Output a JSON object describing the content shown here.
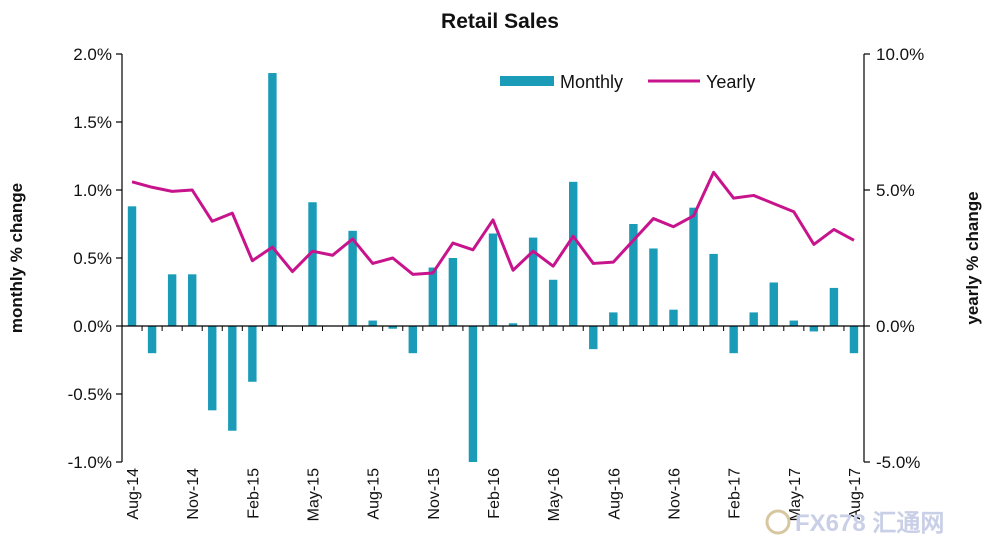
{
  "chart_data": {
    "type": "bar+line",
    "title": "Retail Sales",
    "categories": [
      "Aug-14",
      "Sep-14",
      "Oct-14",
      "Nov-14",
      "Dec-14",
      "Jan-15",
      "Feb-15",
      "Mar-15",
      "Apr-15",
      "May-15",
      "Jun-15",
      "Jul-15",
      "Aug-15",
      "Sep-15",
      "Oct-15",
      "Nov-15",
      "Dec-15",
      "Jan-16",
      "Feb-16",
      "Mar-16",
      "Apr-16",
      "May-16",
      "Jun-16",
      "Jul-16",
      "Aug-16",
      "Sep-16",
      "Oct-16",
      "Nov-16",
      "Dec-16",
      "Jan-17",
      "Feb-17",
      "Mar-17",
      "Apr-17",
      "May-17",
      "Jun-17",
      "Jul-17",
      "Aug-17"
    ],
    "x_tick_labels": [
      "Aug-14",
      "Nov-14",
      "Feb-15",
      "May-15",
      "Aug-15",
      "Nov-15",
      "Feb-16",
      "May-16",
      "Aug-16",
      "Nov-16",
      "Feb-17",
      "May-17",
      "Aug-17"
    ],
    "series": [
      {
        "name": "Monthly",
        "type": "bar",
        "axis": "left",
        "color": "#1a9cb8",
        "values": [
          0.88,
          -0.2,
          0.38,
          0.38,
          -0.62,
          -0.77,
          -0.41,
          1.86,
          0.0,
          0.91,
          0.0,
          0.7,
          0.04,
          -0.02,
          -0.2,
          0.43,
          0.5,
          -1.0,
          0.68,
          0.02,
          0.65,
          0.34,
          1.06,
          -0.17,
          0.1,
          0.75,
          0.57,
          0.12,
          0.87,
          0.53,
          -0.2,
          0.1,
          0.32,
          0.04,
          -0.04,
          0.28,
          -0.2
        ]
      },
      {
        "name": "Yearly",
        "type": "line",
        "axis": "right",
        "color": "#c8148c",
        "values": [
          5.3,
          5.1,
          4.95,
          5.0,
          3.85,
          4.15,
          2.4,
          2.9,
          2.0,
          2.75,
          2.6,
          3.2,
          2.3,
          2.5,
          1.9,
          1.95,
          3.05,
          2.8,
          3.9,
          2.05,
          2.75,
          2.2,
          3.3,
          2.3,
          2.35,
          3.15,
          3.95,
          3.65,
          4.05,
          5.65,
          4.7,
          4.8,
          4.5,
          4.2,
          3.0,
          3.55,
          3.15
        ]
      }
    ],
    "y_left": {
      "label": "monthly % change",
      "min": -1.0,
      "max": 2.0,
      "ticks": [
        "-1.0%",
        "-0.5%",
        "0.0%",
        "0.5%",
        "1.0%",
        "1.5%",
        "2.0%"
      ]
    },
    "y_right": {
      "label": "yearly % change",
      "min": -5.0,
      "max": 10.0,
      "ticks": [
        "-5.0%",
        "0.0%",
        "5.0%",
        "10.0%"
      ]
    },
    "legend": {
      "position": "top-right",
      "items": [
        "Monthly",
        "Yearly"
      ]
    },
    "grid": false
  },
  "watermark": {
    "text": "FX678 汇通网"
  }
}
